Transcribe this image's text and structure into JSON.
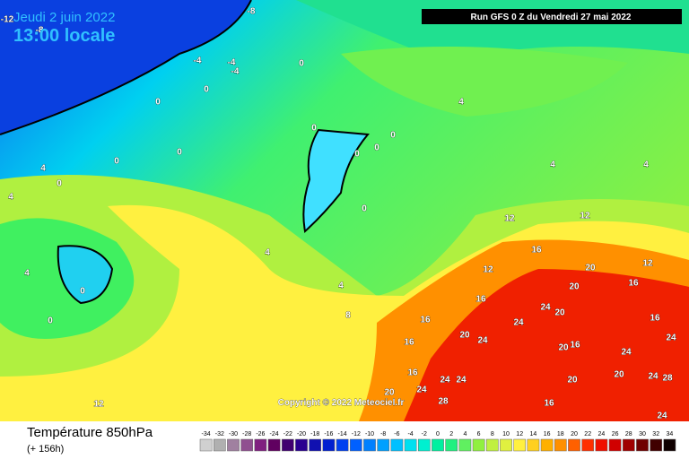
{
  "header": {
    "date": "Jeudi 2 juin 2022",
    "time": "13:00 locale",
    "run": "Run GFS 0 Z du Vendredi 27 mai 2022"
  },
  "map": {
    "copyright": "Copyright © 2022 Meteociel.fr",
    "labels": [
      -12,
      -8,
      -8,
      -4,
      -4,
      -4,
      0,
      0,
      0,
      4,
      0,
      0,
      0,
      0,
      4,
      0,
      0,
      0,
      4,
      4,
      4,
      0,
      12,
      12,
      16,
      4,
      12,
      20,
      16,
      12,
      4,
      0,
      4,
      0,
      8,
      16,
      20,
      24,
      20,
      24,
      16,
      16,
      16,
      20,
      24,
      20,
      16,
      24,
      24,
      16,
      24,
      24,
      20,
      24,
      28,
      20,
      24,
      28,
      16,
      12,
      24,
      20
    ]
  },
  "footer": {
    "title": "Température 850hPa",
    "subtitle": "(+ 156h)",
    "legend": [
      {
        "value": -34,
        "color": "#d0d0d0"
      },
      {
        "value": -32,
        "color": "#b0b0b0"
      },
      {
        "value": -30,
        "color": "#a080a0"
      },
      {
        "value": -28,
        "color": "#905090"
      },
      {
        "value": -26,
        "color": "#802080"
      },
      {
        "value": -24,
        "color": "#600060"
      },
      {
        "value": -22,
        "color": "#400070"
      },
      {
        "value": -20,
        "color": "#2a0090"
      },
      {
        "value": -18,
        "color": "#1010b0"
      },
      {
        "value": -16,
        "color": "#0020d0"
      },
      {
        "value": -14,
        "color": "#0040f0"
      },
      {
        "value": -12,
        "color": "#0060ff"
      },
      {
        "value": -10,
        "color": "#0080ff"
      },
      {
        "value": -8,
        "color": "#00a0ff"
      },
      {
        "value": -6,
        "color": "#00c0ff"
      },
      {
        "value": -4,
        "color": "#00e0f0"
      },
      {
        "value": -2,
        "color": "#00f0d0"
      },
      {
        "value": 0,
        "color": "#00f0a0"
      },
      {
        "value": 2,
        "color": "#20f080"
      },
      {
        "value": 4,
        "color": "#60f060"
      },
      {
        "value": 6,
        "color": "#90f040"
      },
      {
        "value": 8,
        "color": "#c0f040"
      },
      {
        "value": 10,
        "color": "#e0f040"
      },
      {
        "value": 12,
        "color": "#fff040"
      },
      {
        "value": 14,
        "color": "#ffd020"
      },
      {
        "value": 16,
        "color": "#ffb000"
      },
      {
        "value": 18,
        "color": "#ff9000"
      },
      {
        "value": 20,
        "color": "#ff6000"
      },
      {
        "value": 22,
        "color": "#ff3000"
      },
      {
        "value": 24,
        "color": "#f01000"
      },
      {
        "value": 26,
        "color": "#d00000"
      },
      {
        "value": 28,
        "color": "#a00000"
      },
      {
        "value": 30,
        "color": "#700000"
      },
      {
        "value": 32,
        "color": "#400000"
      },
      {
        "value": 34,
        "color": "#100000"
      }
    ]
  }
}
